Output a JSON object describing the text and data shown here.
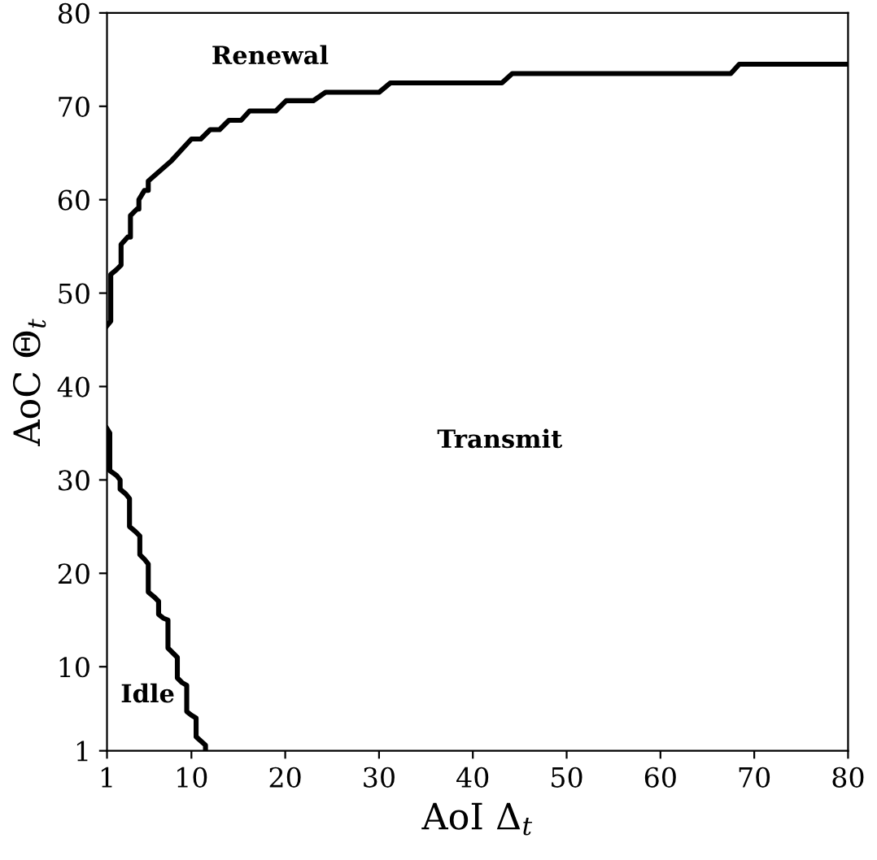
{
  "chart_data": {
    "type": "line",
    "xlabel": "AoI Δ$_{t}$",
    "ylabel": "AoC Θ$_{t}$",
    "xlim": [
      1,
      80
    ],
    "ylim": [
      1,
      80
    ],
    "xticks": [
      1,
      10,
      20,
      30,
      40,
      50,
      60,
      70,
      80
    ],
    "yticks": [
      1,
      10,
      20,
      30,
      40,
      50,
      60,
      70,
      80
    ],
    "grid": false,
    "legend": false,
    "marker": "none",
    "line_style": "solid",
    "annotations": [
      "Renewal",
      "Transmit",
      "Idle"
    ],
    "series": [
      {
        "color": "#000000",
        "x": [
          1,
          1.4,
          1.4,
          2,
          2.5,
          2.5,
          3.2,
          3.5,
          3.5,
          4.2,
          4.4,
          4.4,
          5,
          5.4,
          5.4,
          7.9,
          10,
          11,
          12,
          13,
          14,
          15.3,
          16.2,
          19,
          20.1,
          23,
          24.3,
          30,
          31.2,
          43.1,
          44.2,
          67.5,
          68.4,
          80
        ],
        "values": [
          46.5,
          47,
          52,
          52.5,
          53,
          55.2,
          56,
          56,
          58.3,
          59,
          59,
          60,
          61,
          61,
          62,
          64.2,
          66.5,
          66.5,
          67.5,
          67.5,
          68.5,
          68.5,
          69.5,
          69.5,
          70.6,
          70.6,
          71.5,
          71.5,
          72.5,
          72.5,
          73.5,
          73.5,
          74.5,
          74.5
        ]
      },
      {
        "color": "#000000",
        "x": [
          1,
          1.3,
          1.3,
          2,
          2.4,
          2.4,
          3,
          3.4,
          3.4,
          4,
          4.5,
          4.5,
          5,
          5.4,
          5.4,
          6,
          6.5,
          6.5,
          7,
          7.5,
          7.5,
          8,
          8.5,
          8.5,
          9,
          9.5,
          9.5,
          10,
          10.5,
          10.5,
          11.5,
          11.5
        ],
        "values": [
          35.5,
          35,
          31,
          30.5,
          30,
          29,
          28.5,
          28,
          25,
          24.5,
          24,
          22,
          21.5,
          21,
          18,
          17.5,
          17,
          15.6,
          15.2,
          15,
          12,
          11.5,
          11,
          8.8,
          8.3,
          8,
          5.2,
          4.8,
          4.5,
          2.5,
          1.6,
          1
        ]
      }
    ]
  }
}
